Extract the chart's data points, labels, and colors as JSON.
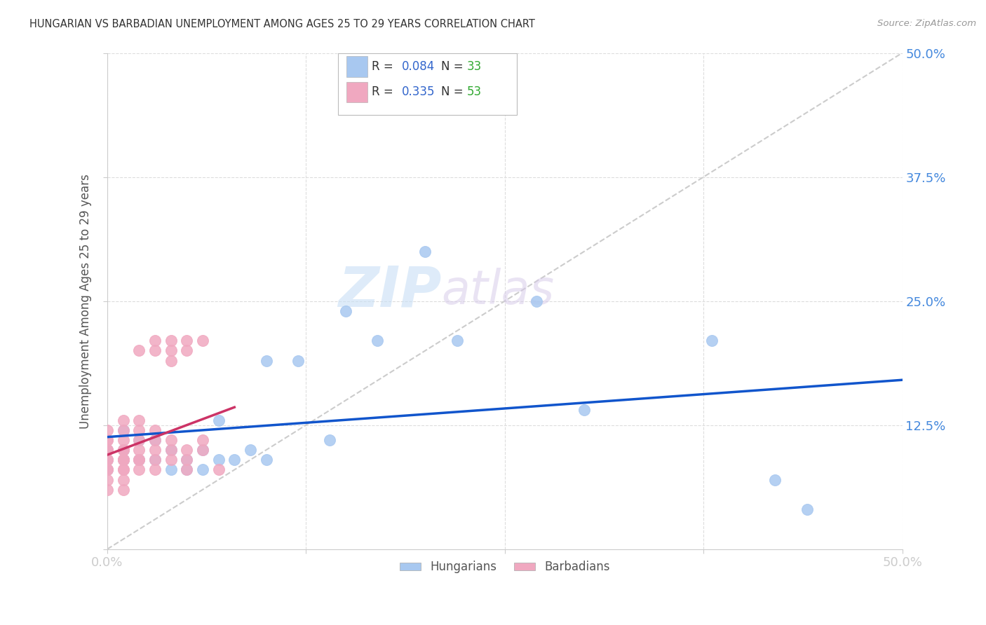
{
  "title": "HUNGARIAN VS BARBADIAN UNEMPLOYMENT AMONG AGES 25 TO 29 YEARS CORRELATION CHART",
  "source": "Source: ZipAtlas.com",
  "ylabel": "Unemployment Among Ages 25 to 29 years",
  "xlim": [
    0,
    0.5
  ],
  "ylim": [
    0,
    0.5
  ],
  "xticks": [
    0.0,
    0.125,
    0.25,
    0.375,
    0.5
  ],
  "yticks": [
    0.0,
    0.125,
    0.25,
    0.375,
    0.5
  ],
  "xticklabels": [
    "0.0%",
    "",
    "",
    "",
    "50.0%"
  ],
  "yticklabels": [
    "",
    "12.5%",
    "25.0%",
    "37.5%",
    "50.0%"
  ],
  "hungarian_color": "#a8c8f0",
  "barbadian_color": "#f0a8c0",
  "hungarian_R": 0.084,
  "hungarian_N": 33,
  "barbadian_R": 0.335,
  "barbadian_N": 53,
  "hungarian_regression_color": "#1155cc",
  "barbadian_regression_color": "#cc3366",
  "diagonal_color": "#cccccc",
  "watermark_zip": "ZIP",
  "watermark_atlas": "atlas",
  "hungarian_x": [
    0.0,
    0.0,
    0.0,
    0.01,
    0.01,
    0.01,
    0.02,
    0.02,
    0.03,
    0.03,
    0.04,
    0.04,
    0.05,
    0.05,
    0.06,
    0.06,
    0.07,
    0.07,
    0.08,
    0.09,
    0.1,
    0.1,
    0.12,
    0.14,
    0.15,
    0.17,
    0.2,
    0.22,
    0.27,
    0.3,
    0.38,
    0.42,
    0.44
  ],
  "hungarian_y": [
    0.09,
    0.1,
    0.08,
    0.1,
    0.12,
    0.09,
    0.09,
    0.11,
    0.11,
    0.09,
    0.08,
    0.1,
    0.09,
    0.08,
    0.1,
    0.08,
    0.09,
    0.13,
    0.09,
    0.1,
    0.09,
    0.19,
    0.19,
    0.11,
    0.24,
    0.21,
    0.3,
    0.21,
    0.25,
    0.14,
    0.21,
    0.07,
    0.04
  ],
  "barbadian_x": [
    0.0,
    0.0,
    0.0,
    0.0,
    0.0,
    0.0,
    0.0,
    0.0,
    0.0,
    0.0,
    0.0,
    0.01,
    0.01,
    0.01,
    0.01,
    0.01,
    0.01,
    0.01,
    0.01,
    0.01,
    0.01,
    0.01,
    0.01,
    0.02,
    0.02,
    0.02,
    0.02,
    0.02,
    0.02,
    0.02,
    0.02,
    0.03,
    0.03,
    0.03,
    0.03,
    0.03,
    0.03,
    0.03,
    0.04,
    0.04,
    0.04,
    0.04,
    0.04,
    0.04,
    0.05,
    0.05,
    0.05,
    0.05,
    0.05,
    0.06,
    0.06,
    0.06,
    0.07
  ],
  "barbadian_y": [
    0.08,
    0.09,
    0.1,
    0.11,
    0.07,
    0.08,
    0.09,
    0.1,
    0.11,
    0.12,
    0.06,
    0.09,
    0.1,
    0.11,
    0.12,
    0.13,
    0.08,
    0.09,
    0.1,
    0.07,
    0.08,
    0.09,
    0.06,
    0.09,
    0.1,
    0.11,
    0.12,
    0.13,
    0.2,
    0.08,
    0.09,
    0.09,
    0.1,
    0.11,
    0.12,
    0.2,
    0.21,
    0.08,
    0.09,
    0.1,
    0.11,
    0.2,
    0.21,
    0.19,
    0.08,
    0.09,
    0.1,
    0.2,
    0.21,
    0.1,
    0.11,
    0.21,
    0.08
  ]
}
